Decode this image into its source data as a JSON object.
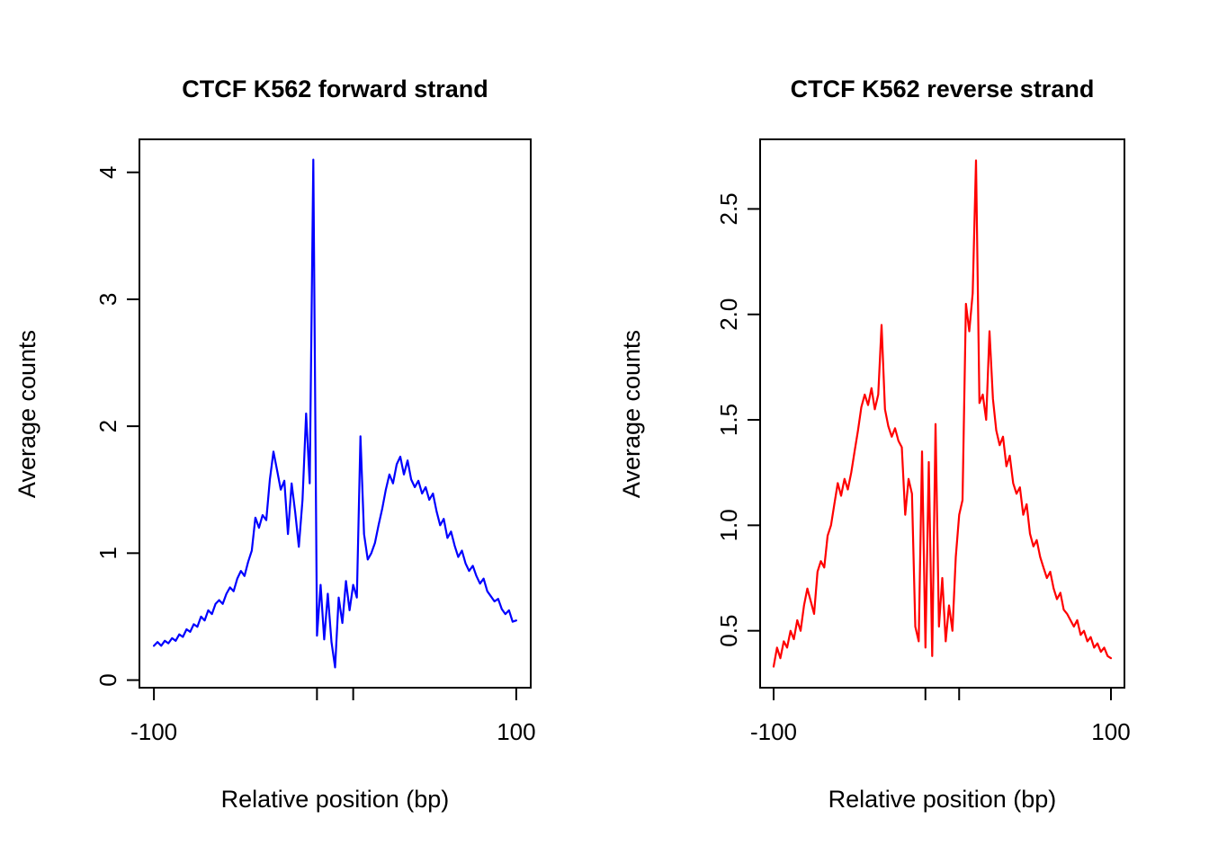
{
  "page": {
    "background": "#ffffff",
    "axis_color": "#000000"
  },
  "chart_data": [
    {
      "type": "line",
      "title": "CTCF K562 forward strand",
      "xlabel": "Relative position (bp)",
      "ylabel": "Average counts",
      "color": "#0000ff",
      "xlim": [
        -108,
        108
      ],
      "ylim": [
        -0.06,
        4.26
      ],
      "x_ticks": [
        {
          "v": -100,
          "label": "-100"
        },
        {
          "v": -10,
          "label": ""
        },
        {
          "v": 10,
          "label": ""
        },
        {
          "v": 100,
          "label": "100"
        }
      ],
      "y_ticks": [
        {
          "v": 0,
          "label": "0"
        },
        {
          "v": 1,
          "label": "1"
        },
        {
          "v": 2,
          "label": "2"
        },
        {
          "v": 3,
          "label": "3"
        },
        {
          "v": 4,
          "label": "4"
        }
      ],
      "x_start": -100,
      "x_step": 2,
      "values": [
        0.27,
        0.3,
        0.27,
        0.31,
        0.29,
        0.33,
        0.31,
        0.36,
        0.34,
        0.4,
        0.38,
        0.44,
        0.42,
        0.5,
        0.47,
        0.55,
        0.52,
        0.6,
        0.63,
        0.6,
        0.68,
        0.73,
        0.7,
        0.8,
        0.86,
        0.82,
        0.93,
        1.02,
        1.28,
        1.2,
        1.3,
        1.26,
        1.58,
        1.8,
        1.65,
        1.5,
        1.57,
        1.15,
        1.55,
        1.32,
        1.05,
        1.42,
        2.1,
        1.55,
        4.1,
        0.35,
        0.75,
        0.32,
        0.68,
        0.3,
        0.1,
        0.65,
        0.45,
        0.78,
        0.55,
        0.75,
        0.65,
        1.92,
        1.15,
        0.95,
        1.0,
        1.08,
        1.22,
        1.35,
        1.5,
        1.62,
        1.55,
        1.7,
        1.76,
        1.62,
        1.73,
        1.58,
        1.52,
        1.57,
        1.47,
        1.52,
        1.42,
        1.47,
        1.33,
        1.22,
        1.27,
        1.12,
        1.17,
        1.06,
        0.97,
        1.02,
        0.92,
        0.86,
        0.9,
        0.82,
        0.76,
        0.8,
        0.7,
        0.66,
        0.62,
        0.64,
        0.56,
        0.52,
        0.55,
        0.46,
        0.47
      ]
    },
    {
      "type": "line",
      "title": "CTCF K562 reverse strand",
      "xlabel": "Relative position (bp)",
      "ylabel": "Average counts",
      "color": "#ff0000",
      "xlim": [
        -108,
        108
      ],
      "ylim": [
        0.23,
        2.83
      ],
      "x_ticks": [
        {
          "v": -100,
          "label": "-100"
        },
        {
          "v": -10,
          "label": ""
        },
        {
          "v": 10,
          "label": ""
        },
        {
          "v": 100,
          "label": "100"
        }
      ],
      "y_ticks": [
        {
          "v": 0.5,
          "label": "0.5"
        },
        {
          "v": 1.0,
          "label": "1.0"
        },
        {
          "v": 1.5,
          "label": "1.5"
        },
        {
          "v": 2.0,
          "label": "2.0"
        },
        {
          "v": 2.5,
          "label": "2.5"
        }
      ],
      "x_start": -100,
      "x_step": 2,
      "values": [
        0.33,
        0.42,
        0.37,
        0.45,
        0.42,
        0.5,
        0.46,
        0.55,
        0.5,
        0.62,
        0.7,
        0.64,
        0.58,
        0.78,
        0.83,
        0.8,
        0.95,
        1.0,
        1.1,
        1.2,
        1.14,
        1.22,
        1.17,
        1.25,
        1.35,
        1.45,
        1.56,
        1.62,
        1.57,
        1.65,
        1.55,
        1.62,
        1.95,
        1.55,
        1.47,
        1.42,
        1.46,
        1.4,
        1.37,
        1.05,
        1.22,
        1.15,
        0.52,
        0.45,
        1.35,
        0.42,
        1.3,
        0.38,
        1.48,
        0.52,
        0.75,
        0.45,
        0.62,
        0.5,
        0.85,
        1.05,
        1.12,
        2.05,
        1.92,
        2.1,
        2.73,
        1.58,
        1.62,
        1.5,
        1.92,
        1.6,
        1.45,
        1.38,
        1.42,
        1.28,
        1.33,
        1.2,
        1.15,
        1.18,
        1.05,
        1.1,
        0.96,
        0.9,
        0.93,
        0.85,
        0.8,
        0.75,
        0.78,
        0.7,
        0.65,
        0.68,
        0.6,
        0.58,
        0.55,
        0.52,
        0.55,
        0.48,
        0.5,
        0.45,
        0.47,
        0.42,
        0.44,
        0.4,
        0.42,
        0.38,
        0.37
      ]
    }
  ]
}
